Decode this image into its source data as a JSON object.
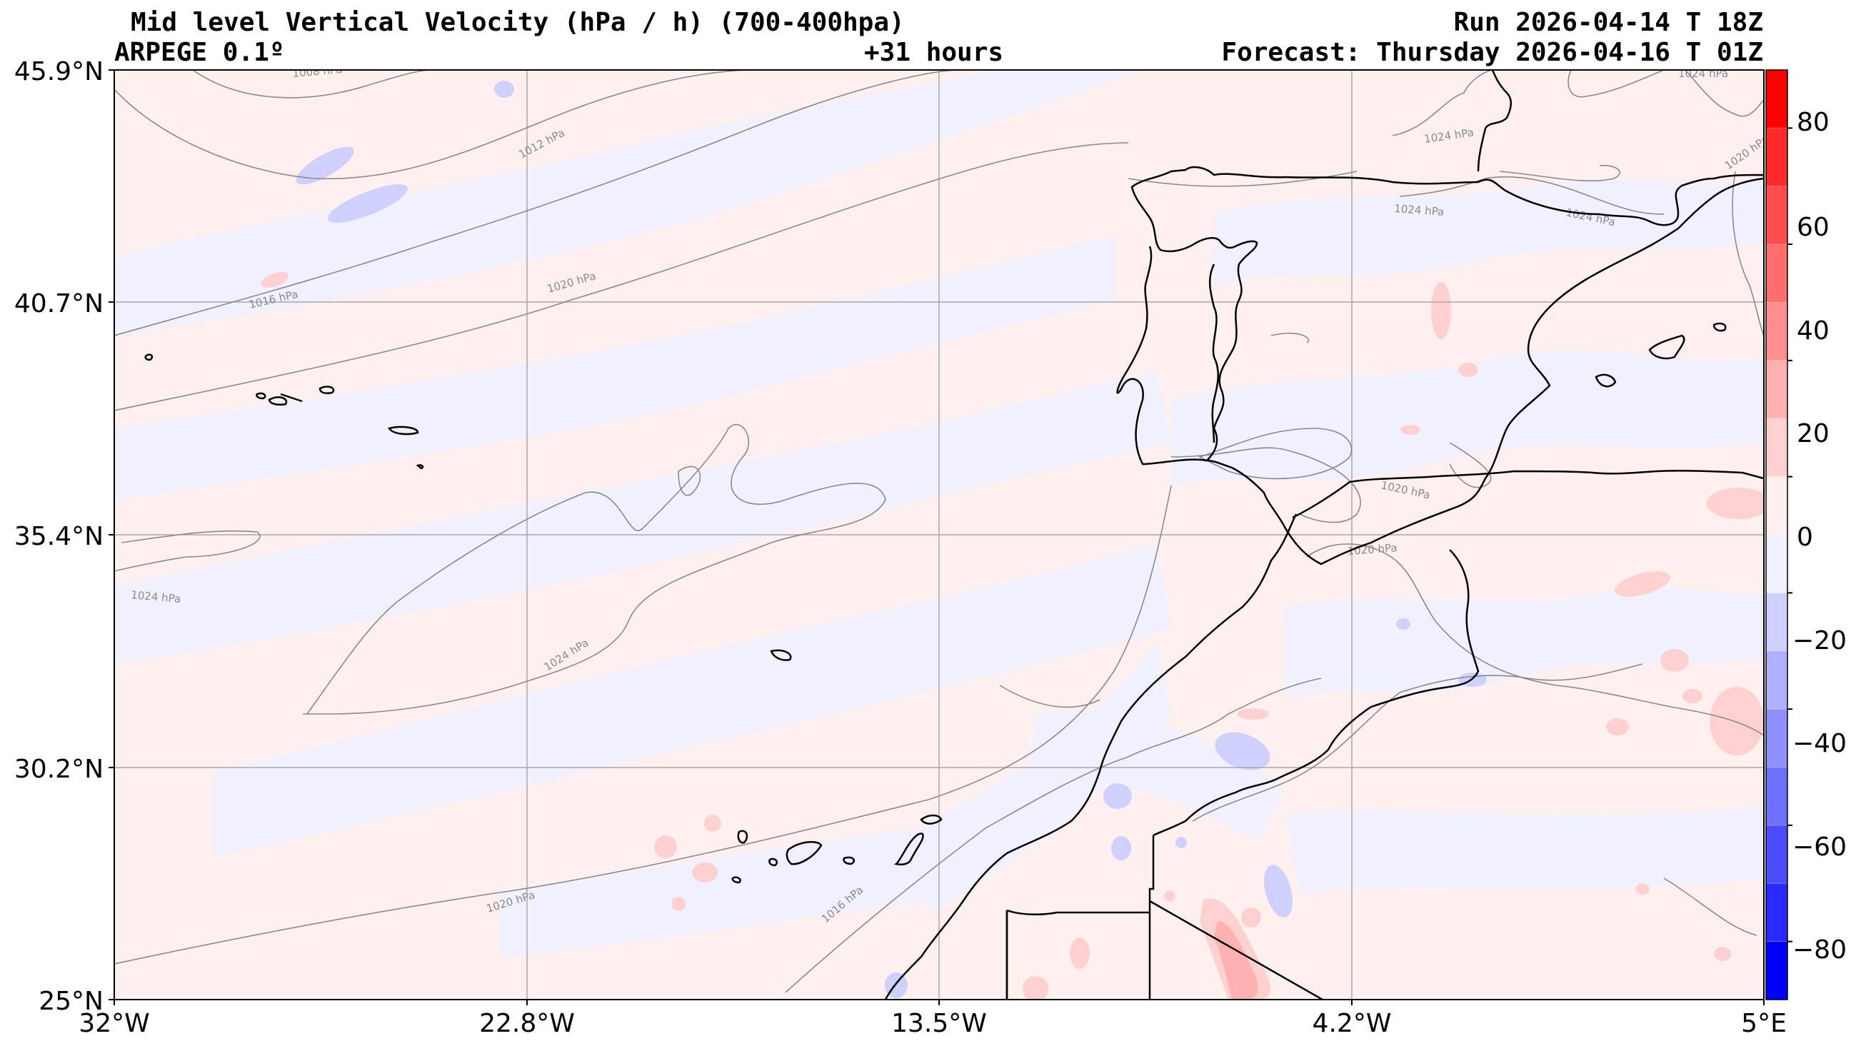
{
  "header": {
    "title": "Mid level Vertical Velocity (hPa / h)  (700-400hpa)",
    "model": "ARPEGE 0.1º",
    "lead": "+31 hours",
    "run": "Run 2026-04-14 T 18Z",
    "forecast": "Forecast: Thursday 2026-04-16 T 01Z"
  },
  "map": {
    "lat_ticks": [
      "45.9°N",
      "40.7°N",
      "35.4°N",
      "30.2°N",
      "25°N"
    ],
    "lon_ticks": [
      "32°W",
      "22.8°W",
      "13.5°W",
      "4.2°W",
      "5°E"
    ],
    "isobar_labels": [
      "1008 hPa",
      "1012 hPa",
      "1016 hPa",
      "1020 hPa",
      "1024 hPa",
      "1024 hPa",
      "1016 hPa",
      "1020 hPa",
      "1020 hPa",
      "1020 hPa",
      "1024 hPa",
      "1024 hPa",
      "1024 hPa",
      "1024 hPa",
      "1020 hPa"
    ],
    "colors": {
      "positive": "#ff0000",
      "negative": "#0000ff",
      "coast": "#000000",
      "isobar": "#8a8a8a"
    }
  },
  "colorbar": {
    "ticks": [
      "80",
      "60",
      "40",
      "20",
      "0",
      "−20",
      "−40",
      "−60",
      "−80"
    ],
    "colors": [
      "#ff0000",
      "#ff2a2a",
      "#ff4c4c",
      "#ff6e6e",
      "#ff8f8f",
      "#ffb0b0",
      "#ffd0d0",
      "#fff0f0",
      "#f0f0ff",
      "#d0d0ff",
      "#b0b0ff",
      "#8f8fff",
      "#6e6eff",
      "#4c4cff",
      "#2a2aff",
      "#0000ff"
    ]
  }
}
